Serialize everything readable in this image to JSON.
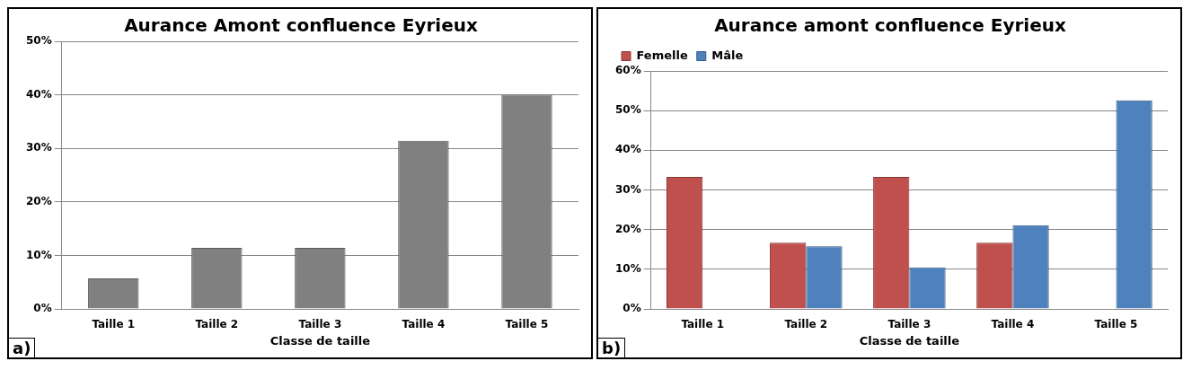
{
  "chart_data": [
    {
      "type": "bar",
      "title": "Aurance Amont confluence Eyrieux",
      "xlabel": "Classe de taille",
      "categories": [
        "Taille 1",
        "Taille 2",
        "Taille 3",
        "Taille 4",
        "Taille 5"
      ],
      "values": [
        5.7,
        11.4,
        11.4,
        31.4,
        40
      ],
      "color": "#808080",
      "ylim": [
        0,
        50
      ],
      "yticks": [
        {
          "value": 0,
          "label": "0%"
        },
        {
          "value": 10,
          "label": "10%"
        },
        {
          "value": 20,
          "label": "20%"
        },
        {
          "value": 30,
          "label": "30%"
        },
        {
          "value": 40,
          "label": "40%"
        },
        {
          "value": 50,
          "label": "50%"
        }
      ],
      "grid": "y",
      "legend": false,
      "annotations": [
        "a)"
      ]
    },
    {
      "type": "bar",
      "title": "Aurance amont confluence Eyrieux",
      "xlabel": "Classe de taille",
      "categories": [
        "Taille 1",
        "Taille 2",
        "Taille 3",
        "Taille 4",
        "Taille 5"
      ],
      "series": [
        {
          "name": "Femelle",
          "color": "#c0504d",
          "values": [
            33.3,
            16.7,
            33.3,
            16.7,
            0
          ]
        },
        {
          "name": "Mâle",
          "color": "#4f81bd",
          "values": [
            0,
            15.8,
            10.5,
            21.1,
            52.6
          ]
        }
      ],
      "ylim": [
        0,
        60
      ],
      "yticks": [
        {
          "value": 0,
          "label": "0%"
        },
        {
          "value": 10,
          "label": "10%"
        },
        {
          "value": 20,
          "label": "20%"
        },
        {
          "value": 30,
          "label": "30%"
        },
        {
          "value": 40,
          "label": "40%"
        },
        {
          "value": 50,
          "label": "50%"
        },
        {
          "value": 60,
          "label": "60%"
        }
      ],
      "grid": "y",
      "legend": "top left",
      "annotations": [
        "b)"
      ]
    }
  ]
}
